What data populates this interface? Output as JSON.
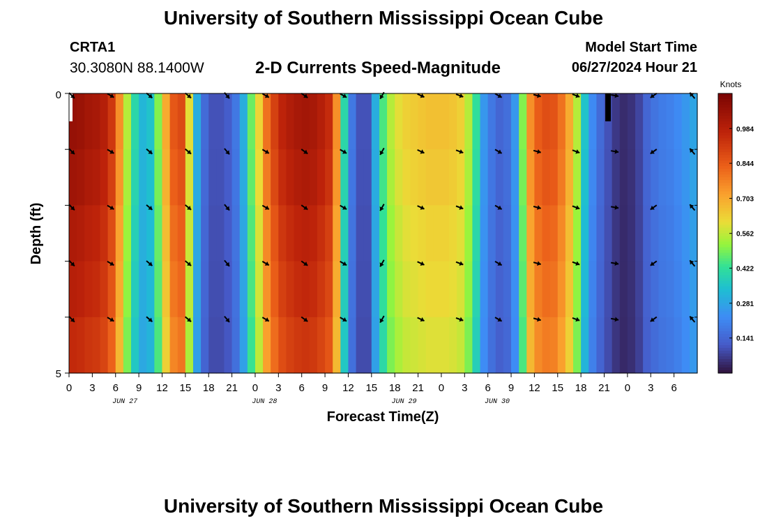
{
  "header": {
    "title": "University of Southern Mississippi Ocean Cube",
    "station": "CRTA1",
    "coordinates": "30.3080N  88.1400W",
    "subtitle": "2-D Currents Speed-Magnitude",
    "model_start_label": "Model Start Time",
    "model_start_value": "06/27/2024 Hour 21"
  },
  "footer": {
    "title": "University of Southern Mississippi Ocean Cube"
  },
  "chart_data": {
    "type": "heatmap",
    "title": "2-D Currents Speed-Magnitude",
    "xlabel": "Forecast Time(Z)",
    "ylabel": "Depth (ft)",
    "y_ticks": [
      "0",
      "5"
    ],
    "ylim": [
      0,
      5
    ],
    "x_tick_labels": [
      "0",
      "3",
      "6",
      "9",
      "12",
      "15",
      "18",
      "21",
      "0",
      "3",
      "6",
      "9",
      "12",
      "15",
      "18",
      "21",
      "0",
      "3",
      "6",
      "9",
      "12",
      "15",
      "18",
      "21",
      "0",
      "3",
      "6"
    ],
    "date_labels": [
      {
        "label": "JUN 27",
        "tick_index": 2.5
      },
      {
        "label": "JUN 28",
        "tick_index": 8.5
      },
      {
        "label": "JUN 29",
        "tick_index": 14.5
      },
      {
        "label": "JUN 30",
        "tick_index": 18.5
      }
    ],
    "colorbar": {
      "unit": "Knots",
      "range": [
        0,
        1.125
      ],
      "ticks": [
        "0.984",
        "0.844",
        "0.703",
        "0.562",
        "0.422",
        "0.281",
        "0.141"
      ]
    },
    "time_hours": [
      0,
      1,
      2,
      3,
      4,
      5,
      6,
      7,
      8,
      9,
      10,
      11,
      12,
      13,
      14,
      15,
      16,
      17,
      18,
      19,
      20,
      21,
      22,
      23,
      24,
      25,
      26,
      27,
      28,
      29,
      30,
      31,
      32,
      33,
      34,
      35,
      36,
      37,
      38,
      39,
      40,
      41,
      42,
      43,
      44,
      45,
      46,
      47,
      48,
      49,
      50,
      51,
      52,
      53,
      54,
      55,
      56,
      57,
      58,
      59,
      60,
      61,
      62,
      63,
      64,
      65,
      66,
      67,
      68,
      69,
      70,
      71,
      72,
      73,
      74,
      75,
      76,
      77,
      78,
      79,
      80,
      81
    ],
    "speed_knots": [
      1.06,
      1.05,
      1.03,
      1.02,
      0.99,
      0.92,
      0.75,
      0.55,
      0.4,
      0.32,
      0.35,
      0.5,
      0.7,
      0.85,
      0.88,
      0.6,
      0.3,
      0.15,
      0.1,
      0.1,
      0.12,
      0.18,
      0.3,
      0.48,
      0.62,
      0.8,
      0.9,
      0.97,
      1.0,
      1.02,
      1.03,
      1.02,
      0.99,
      0.95,
      0.75,
      0.4,
      0.18,
      0.1,
      0.1,
      0.3,
      0.45,
      0.55,
      0.6,
      0.63,
      0.64,
      0.65,
      0.66,
      0.66,
      0.66,
      0.65,
      0.63,
      0.55,
      0.42,
      0.25,
      0.18,
      0.14,
      0.16,
      0.25,
      0.5,
      0.75,
      0.84,
      0.87,
      0.86,
      0.8,
      0.7,
      0.55,
      0.35,
      0.22,
      0.15,
      0.1,
      0.06,
      0.04,
      0.05,
      0.08,
      0.14,
      0.17,
      0.19,
      0.2,
      0.22,
      0.25,
      0.28,
      0.3
    ],
    "depth_rows_ft": [
      0,
      1,
      2,
      3,
      4,
      5
    ],
    "depth_factor": [
      1.0,
      0.98,
      0.95,
      0.93,
      0.9,
      0.86
    ],
    "vectors": {
      "times_hours": [
        0,
        5,
        10,
        15,
        20,
        25,
        30,
        35,
        40,
        45,
        50,
        55,
        60,
        65,
        70,
        75,
        80
      ],
      "depths_ft": [
        0,
        1,
        2,
        3,
        4
      ],
      "direction_deg": [
        135,
        120,
        130,
        130,
        140,
        120,
        125,
        120,
        210,
        115,
        110,
        120,
        105,
        110,
        100,
        235,
        320
      ]
    },
    "marker_times_hours": [
      0,
      69.5
    ]
  }
}
